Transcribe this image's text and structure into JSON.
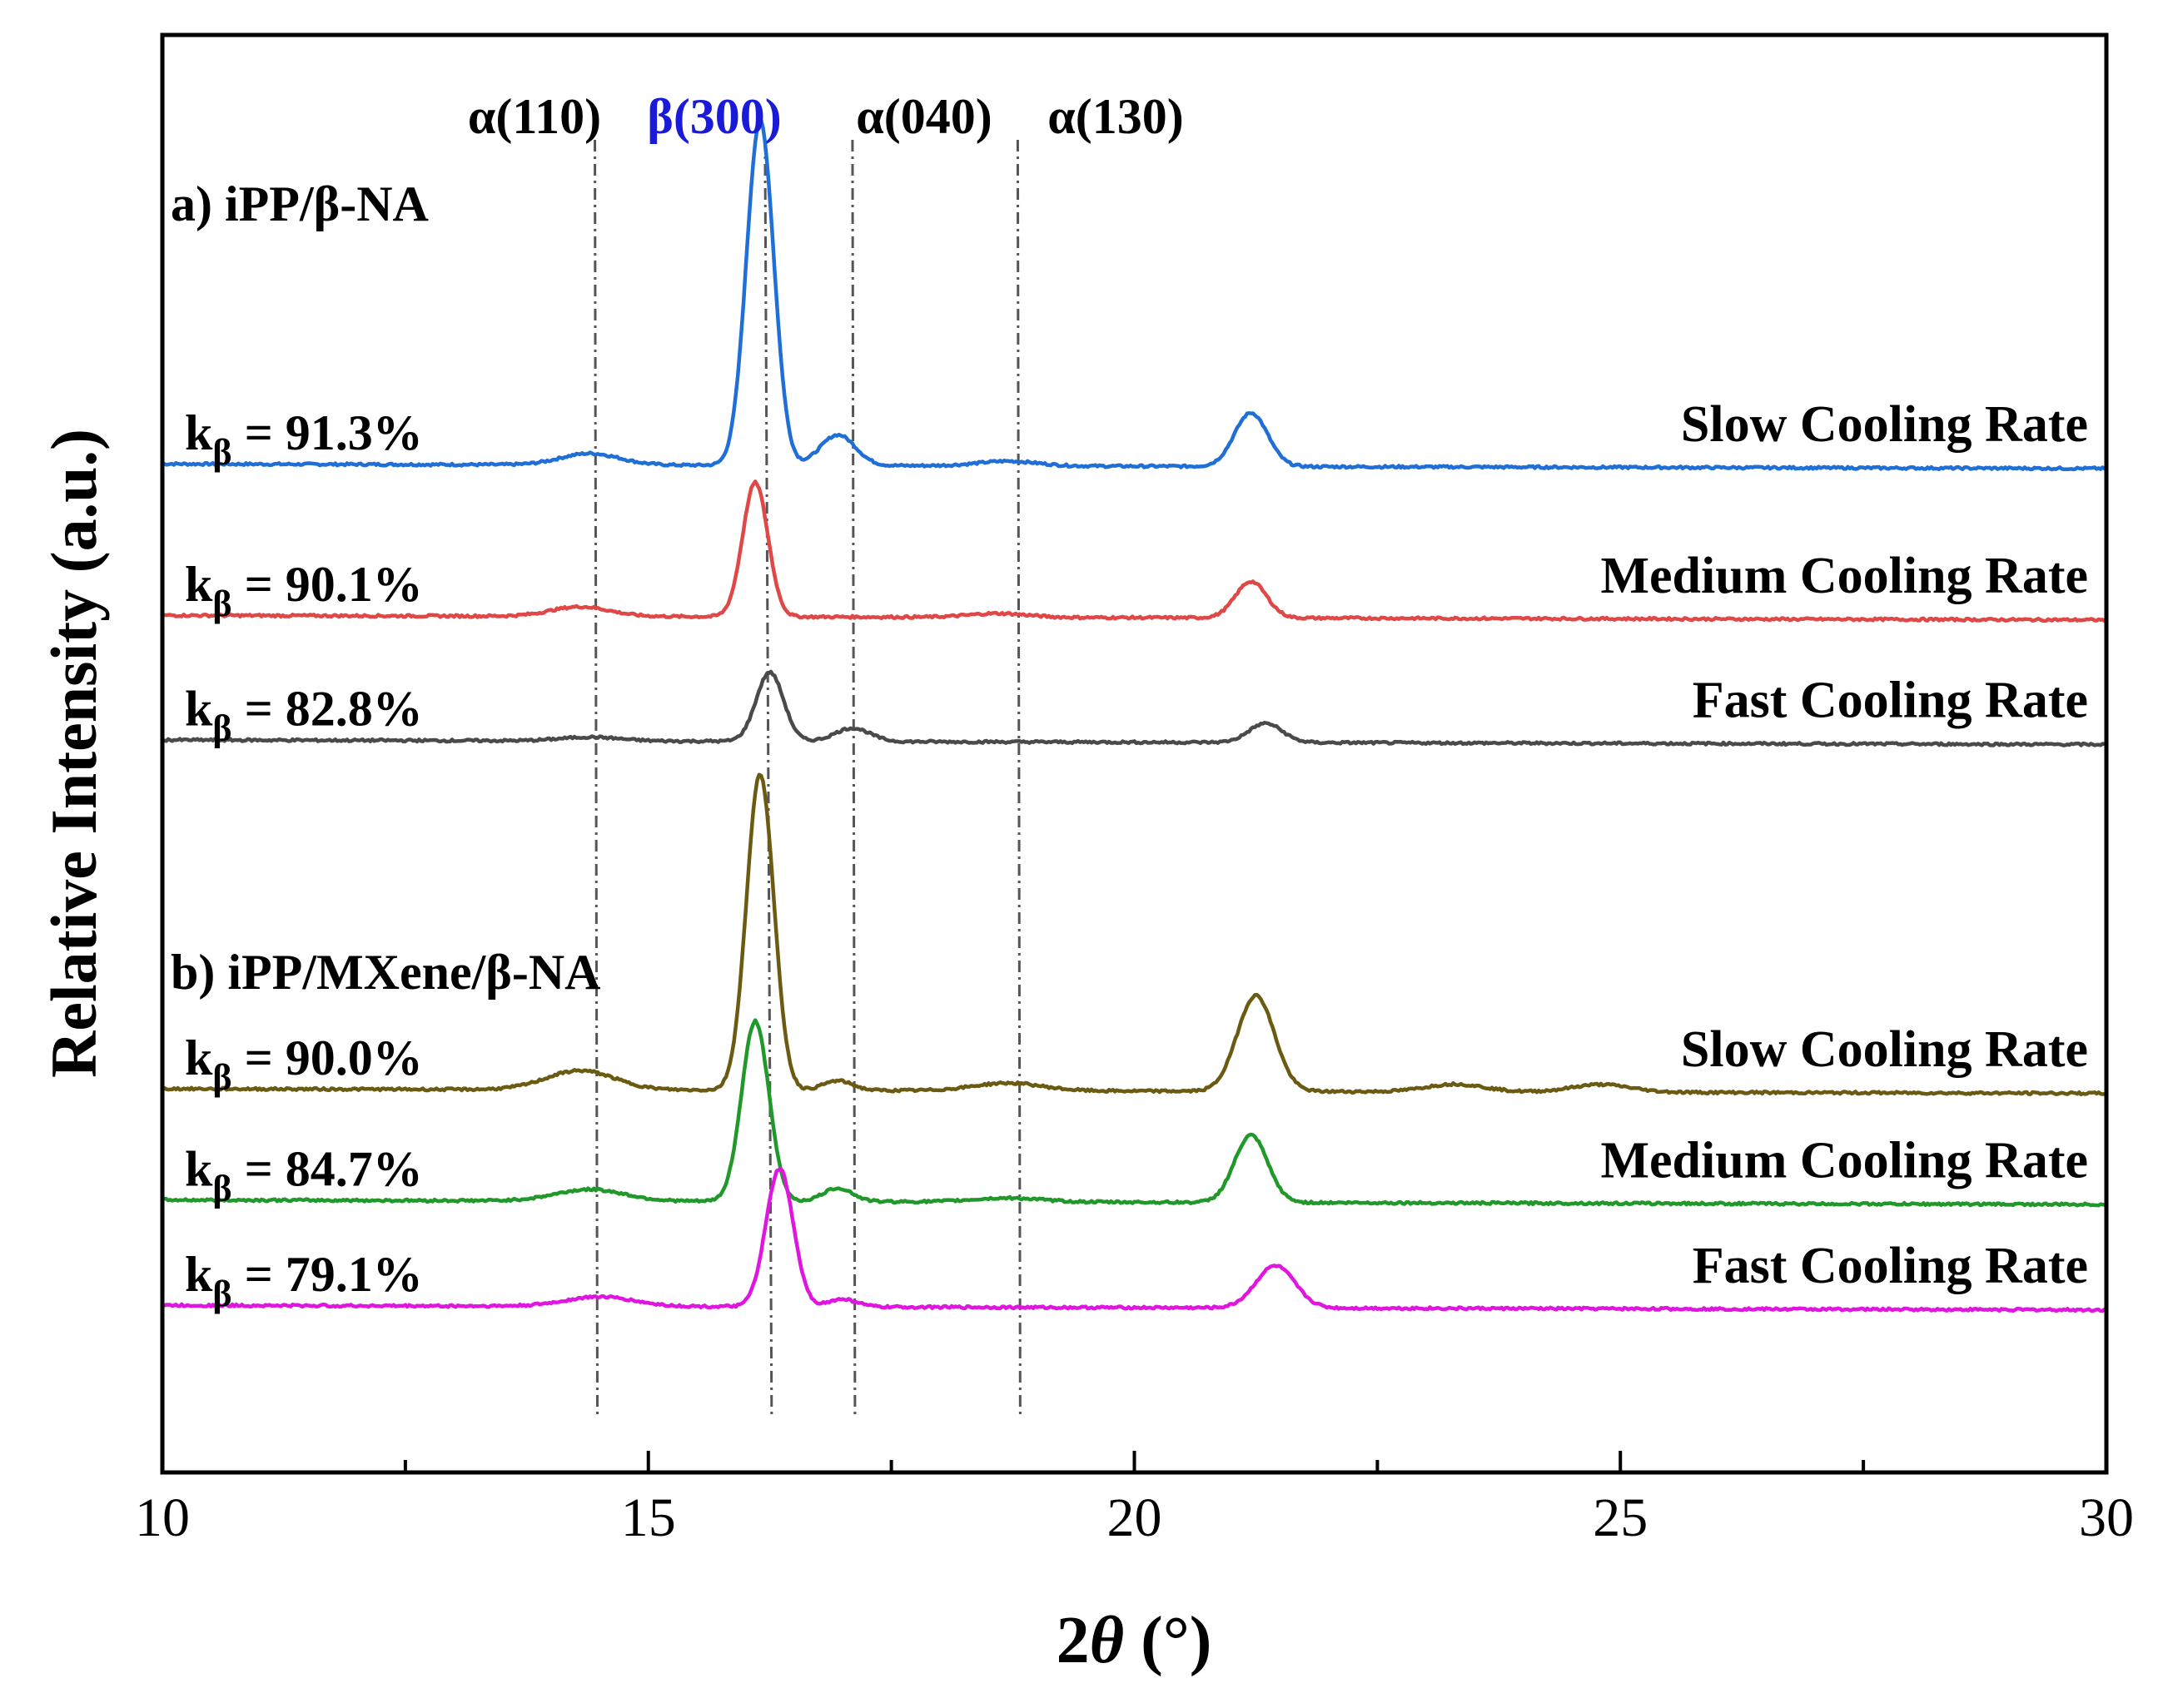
{
  "chart_data": {
    "type": "line",
    "xlabel": "2θ (°)",
    "xlabel_italic_part": "θ",
    "ylabel": "Relative Intensity (a.u.)",
    "xlim": [
      10,
      30
    ],
    "xticks": [
      10,
      15,
      20,
      25,
      30
    ],
    "yticks_shown": false,
    "group_labels": [
      {
        "text": "a) iPP/β-NA"
      },
      {
        "text": "b) iPP/MXene/β-NA"
      }
    ],
    "reference_lines": [
      {
        "label": "α(110)",
        "x": 14.45,
        "color": "#000000"
      },
      {
        "label": "β(300)",
        "x": 16.2,
        "color": "#1a1ad9"
      },
      {
        "label": "α(040)",
        "x": 17.1,
        "color": "#000000"
      },
      {
        "label": "α(130)",
        "x": 18.8,
        "color": "#000000"
      }
    ],
    "series": [
      {
        "name": "Slow Cooling Rate",
        "group": "a) iPP/β-NA",
        "color": "#1f6fd6",
        "k_label": "= 91.3%",
        "baseline": 72.5,
        "peaks": [
          {
            "x": 14.4,
            "height": 0.6,
            "width": 0.3
          },
          {
            "x": 16.15,
            "height": 18.0,
            "width": 0.14
          },
          {
            "x": 16.95,
            "height": 1.6,
            "width": 0.18
          },
          {
            "x": 18.7,
            "height": 0.25,
            "width": 0.3
          },
          {
            "x": 21.2,
            "height": 2.8,
            "width": 0.17
          }
        ]
      },
      {
        "name": "Medium Cooling Rate",
        "group": "a) iPP/β-NA",
        "color": "#e04848",
        "k_label": "= 90.1%",
        "baseline": 64.6,
        "peaks": [
          {
            "x": 14.3,
            "height": 0.5,
            "width": 0.3
          },
          {
            "x": 16.1,
            "height": 7.0,
            "width": 0.13
          },
          {
            "x": 18.6,
            "height": 0.2,
            "width": 0.3
          },
          {
            "x": 21.2,
            "height": 1.9,
            "width": 0.16
          }
        ]
      },
      {
        "name": "Fast Cooling Rate",
        "group": "a) iPP/β-NA",
        "color": "#4a4a4a",
        "k_label": "= 82.8%",
        "baseline": 58.1,
        "peaks": [
          {
            "x": 14.4,
            "height": 0.2,
            "width": 0.3
          },
          {
            "x": 16.25,
            "height": 3.6,
            "width": 0.14
          },
          {
            "x": 17.1,
            "height": 0.7,
            "width": 0.18
          },
          {
            "x": 21.35,
            "height": 1.0,
            "width": 0.17
          }
        ]
      },
      {
        "name": "Slow Cooling Rate",
        "group": "b) iPP/MXene/β-NA",
        "color": "#6b5a12",
        "k_label": "= 90.0%",
        "baseline": 39.9,
        "peaks": [
          {
            "x": 14.3,
            "height": 1.0,
            "width": 0.35
          },
          {
            "x": 16.15,
            "height": 16.5,
            "width": 0.14
          },
          {
            "x": 16.95,
            "height": 0.5,
            "width": 0.15
          },
          {
            "x": 18.7,
            "height": 0.4,
            "width": 0.35
          },
          {
            "x": 21.25,
            "height": 5.0,
            "width": 0.19
          },
          {
            "x": 23.3,
            "height": 0.4,
            "width": 0.3
          },
          {
            "x": 24.8,
            "height": 0.4,
            "width": 0.3
          }
        ]
      },
      {
        "name": "Medium Cooling Rate",
        "group": "b) iPP/MXene/β-NA",
        "color": "#21982a",
        "k_label": "= 84.7%",
        "baseline": 34.1,
        "peaks": [
          {
            "x": 14.4,
            "height": 0.6,
            "width": 0.35
          },
          {
            "x": 16.1,
            "height": 9.4,
            "width": 0.14
          },
          {
            "x": 16.95,
            "height": 0.7,
            "width": 0.15
          },
          {
            "x": 18.7,
            "height": 0.2,
            "width": 0.35
          },
          {
            "x": 21.2,
            "height": 3.5,
            "width": 0.17
          }
        ]
      },
      {
        "name": "Fast Cooling Rate",
        "group": "b) iPP/MXene/β-NA",
        "color": "#e016e0",
        "k_label": "= 79.1%",
        "baseline": 28.6,
        "peaks": [
          {
            "x": 14.5,
            "height": 0.5,
            "width": 0.35
          },
          {
            "x": 16.35,
            "height": 7.2,
            "width": 0.14
          },
          {
            "x": 17.0,
            "height": 0.4,
            "width": 0.15
          },
          {
            "x": 21.45,
            "height": 2.2,
            "width": 0.2
          }
        ]
      }
    ],
    "k_symbol": "k",
    "k_subscript": "β"
  }
}
